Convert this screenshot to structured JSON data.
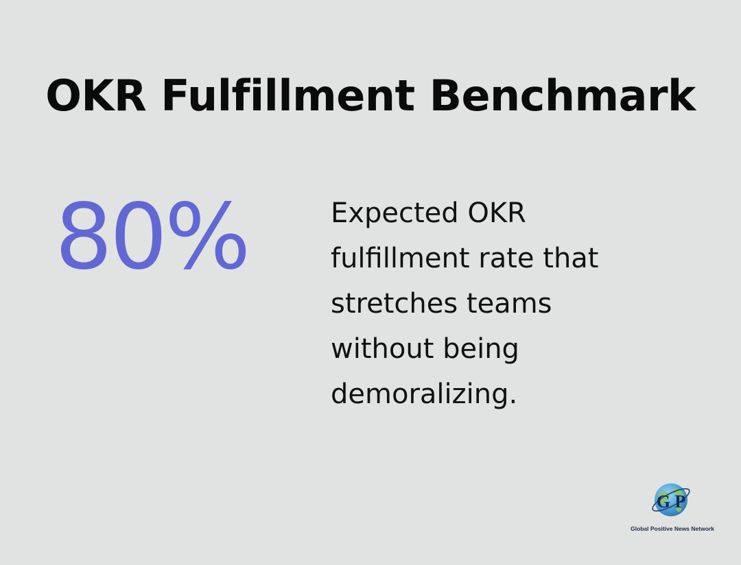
{
  "title": "OKR Fulfillment Benchmark",
  "stat": {
    "value": "80%",
    "description_lines": [
      "Expected OKR",
      "fulfillment rate that",
      "stretches teams",
      "without being",
      "demoralizing."
    ]
  },
  "logo": {
    "monogram": "G P",
    "text": "Global Positive News Network"
  },
  "colors": {
    "background": "#e1e3e3",
    "accent": "#6168d4",
    "text": "#111111"
  }
}
